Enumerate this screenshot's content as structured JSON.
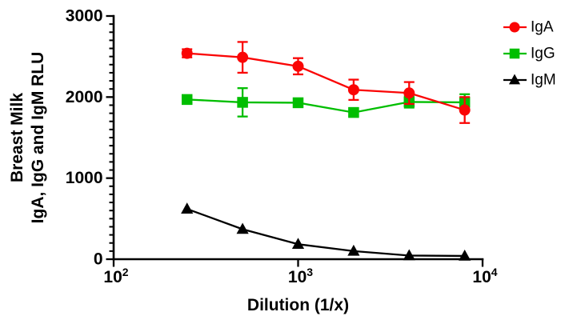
{
  "chart_data": {
    "type": "line",
    "title": "",
    "xlabel": "Dilution (1/x)",
    "ylabel_lines": [
      "Breast Milk",
      "IgA, IgG and IgM RLU"
    ],
    "x_scale": "log10",
    "xlim": [
      100,
      10000
    ],
    "ylim": [
      0,
      3000
    ],
    "x_ticks": [
      {
        "value": 100,
        "base": "10",
        "exp": "2"
      },
      {
        "value": 1000,
        "base": "10",
        "exp": "3"
      },
      {
        "value": 10000,
        "base": "10",
        "exp": "4"
      }
    ],
    "y_ticks": [
      "0",
      "1000",
      "2000",
      "3000"
    ],
    "y_tick_values": [
      0,
      1000,
      2000,
      3000
    ],
    "y_minor_tick_step": 100,
    "grid": "off",
    "legend_position": "right",
    "x": [
      250,
      500,
      1000,
      2000,
      4000,
      8000
    ],
    "series": [
      {
        "name": "IgA",
        "marker": "circle",
        "color": "#FA0505",
        "values": [
          2540,
          2490,
          2380,
          2090,
          2050,
          1840
        ],
        "errors": [
          50,
          190,
          100,
          125,
          135,
          160
        ]
      },
      {
        "name": "IgG",
        "marker": "square",
        "color": "#00BE00",
        "values": [
          1970,
          1935,
          1930,
          1810,
          1940,
          1935
        ],
        "errors": [
          40,
          175,
          40,
          40,
          70,
          100
        ]
      },
      {
        "name": "IgM",
        "marker": "triangle",
        "color": "#000000",
        "values": [
          620,
          370,
          185,
          100,
          45,
          40
        ],
        "errors": [
          0,
          0,
          0,
          0,
          0,
          0
        ]
      }
    ]
  }
}
